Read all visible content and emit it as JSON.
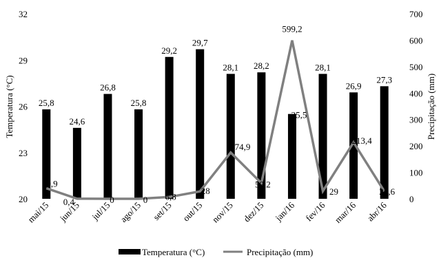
{
  "chart_data": {
    "type": "bar+line",
    "categories": [
      "mai/15",
      "jun/15",
      "jul/15",
      "ago/15",
      "set/15",
      "out/15",
      "nov/15",
      "dez/15",
      "jan/16",
      "fev/16",
      "mar/16",
      "abr/16"
    ],
    "series": [
      {
        "name": "Temperatura (°C)",
        "type": "bar",
        "axis": "left",
        "values": [
          25.8,
          24.6,
          26.8,
          25.8,
          29.2,
          29.7,
          28.1,
          28.2,
          25.5,
          28.1,
          26.9,
          27.3
        ],
        "labels": [
          "25,8",
          "24,6",
          "26,8",
          "25,8",
          "29,2",
          "29,7",
          "28,1",
          "28,2",
          "25,5",
          "28,1",
          "26,9",
          "27,3"
        ],
        "color": "#000000"
      },
      {
        "name": "Precipitação (mm)",
        "type": "line",
        "axis": "right",
        "values": [
          39.9,
          0.4,
          0,
          0,
          6.8,
          28,
          174.9,
          59.2,
          599.2,
          29,
          213.4,
          28.6
        ],
        "labels": [
          "39,9",
          "0,4",
          "0",
          "0",
          "6,8",
          "28",
          "174,9",
          "59,2",
          "599,2",
          "29",
          "213,4",
          "28,6"
        ],
        "color": "#808080"
      }
    ],
    "ylabel_left": "Temperatura  (°C)",
    "ylabel_right": "Precipitação  (mm)",
    "ylim_left": [
      20,
      32
    ],
    "yticks_left": [
      "20",
      "23",
      "26",
      "29",
      "32"
    ],
    "ylim_right": [
      0,
      700
    ],
    "yticks_right": [
      "0",
      "100",
      "200",
      "300",
      "400",
      "500",
      "600",
      "700"
    ],
    "legend": {
      "position": "bottom",
      "items": [
        "Temperatura  (°C)",
        "Precipitação (mm)"
      ]
    },
    "grid": false
  }
}
